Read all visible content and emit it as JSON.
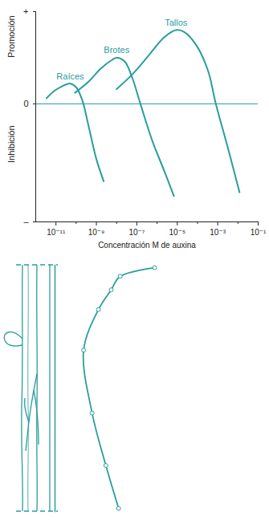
{
  "chart_data": [
    {
      "type": "line",
      "xlabel": "Concentración M de auxina",
      "ylabel": {
        "positive": "Promoción",
        "negative": "Inhibición"
      },
      "log": "x",
      "grid": false,
      "xlim": [
        1e-12,
        0.1
      ],
      "xticks": [
        {
          "value": 1e-11,
          "label": "10⁻¹¹"
        },
        {
          "value": 1e-09,
          "label": "10⁻⁹"
        },
        {
          "value": 1e-07,
          "label": "10⁻⁷"
        },
        {
          "value": 1e-05,
          "label": "10⁻⁵"
        },
        {
          "value": 0.001,
          "label": "10⁻³"
        },
        {
          "value": 0.1,
          "label": "10⁻¹"
        }
      ],
      "xminor_ticks": [
        1e-10,
        1e-08,
        1e-06,
        0.0001,
        0.01
      ],
      "ylim": [
        -1.28,
        1
      ],
      "yticks": [
        {
          "value": 1,
          "label": "+"
        },
        0,
        {
          "value": -1.28,
          "label": "–"
        }
      ],
      "series": [
        {
          "name": "Raíces",
          "color": "#2a9d9d",
          "x": [
            3.4e-12,
            8.3e-12,
            2e-11,
            5.1e-11,
            1e-10,
            2e-10,
            4.1e-10,
            1e-09,
            2.3e-09
          ],
          "values": [
            0.06,
            0.14,
            0.19,
            0.22,
            0.18,
            0.04,
            -0.24,
            -0.6,
            -0.84
          ]
        },
        {
          "name": "Brotes",
          "color": "#2a9d9d",
          "x": [
            8.7e-11,
            4.1e-10,
            1.6e-09,
            6.3e-09,
            1e-08,
            2.5e-08,
            6e-08,
            1.5e-07,
            5.8e-07,
            2.2e-06,
            6.8e-06
          ],
          "values": [
            0.12,
            0.24,
            0.38,
            0.48,
            0.5,
            0.46,
            0.28,
            0,
            -0.4,
            -0.72,
            -1.0
          ]
        },
        {
          "name": "Tallos",
          "color": "#2a9d9d",
          "x": [
            1e-08,
            6e-08,
            3.7e-07,
            2.2e-06,
            8.7e-06,
            2.2e-05,
            8.5e-05,
            0.00033,
            0.00081,
            0.0032,
            0.012
          ],
          "values": [
            0.16,
            0.32,
            0.52,
            0.72,
            0.8,
            0.78,
            0.64,
            0.36,
            0,
            -0.48,
            -0.96
          ]
        }
      ]
    },
    {
      "type": "line",
      "marker": "circle",
      "tick_labels": false,
      "color": "#2a9d9d",
      "xlim": [
        0,
        100
      ],
      "ylim": [
        0,
        100
      ],
      "x": [
        94,
        61.5,
        53,
        41,
        27,
        35,
        48,
        60
      ],
      "values": [
        99,
        95.5,
        90,
        82,
        65.5,
        40,
        18.7,
        1.3
      ]
    }
  ]
}
